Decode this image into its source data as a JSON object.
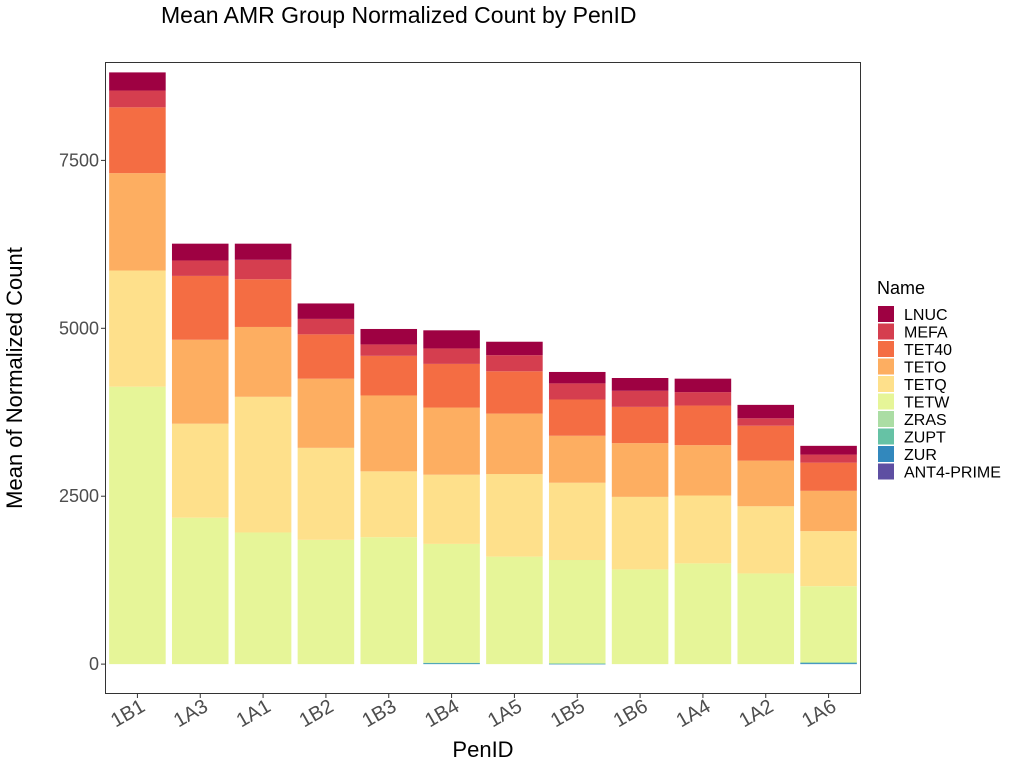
{
  "chart_data": {
    "type": "bar",
    "stacked": true,
    "title": "Mean AMR Group Normalized Count by PenID",
    "xlabel": "PenID",
    "ylabel": "Mean of Normalized Count",
    "ylim": [
      -430,
      8950
    ],
    "yticks": [
      0,
      2500,
      5000,
      7500
    ],
    "grid": false,
    "legend": {
      "title": "Name",
      "position": "right"
    },
    "categories": [
      "1B1",
      "1A3",
      "1A1",
      "1B2",
      "1B3",
      "1B4",
      "1A5",
      "1B5",
      "1B6",
      "1A4",
      "1A2",
      "1A6"
    ],
    "series": [
      {
        "name": "ANT4-PRIME",
        "color": "#5E4FA2",
        "values": [
          0,
          0,
          0,
          0,
          0,
          0,
          0,
          0,
          0,
          0,
          0,
          0
        ]
      },
      {
        "name": "ZUR",
        "color": "#3288BD",
        "values": [
          0,
          0,
          0,
          0,
          0,
          10,
          0,
          5,
          0,
          0,
          0,
          15
        ]
      },
      {
        "name": "ZUPT",
        "color": "#66C2A5",
        "values": [
          0,
          0,
          0,
          0,
          0,
          10,
          0,
          5,
          0,
          0,
          0,
          10
        ]
      },
      {
        "name": "ZRAS",
        "color": "#ABDDA4",
        "values": [
          0,
          0,
          0,
          0,
          0,
          0,
          0,
          0,
          0,
          0,
          0,
          0
        ]
      },
      {
        "name": "TETW",
        "color": "#E6F598",
        "values": [
          4130,
          2180,
          1960,
          1850,
          1890,
          1770,
          1600,
          1540,
          1410,
          1500,
          1350,
          1135
        ]
      },
      {
        "name": "TETQ",
        "color": "#FEE08B",
        "values": [
          1730,
          1400,
          2020,
          1370,
          980,
          1030,
          1230,
          1150,
          1080,
          1010,
          1000,
          820
        ]
      },
      {
        "name": "TETO",
        "color": "#FDAE61",
        "values": [
          1450,
          1250,
          1040,
          1030,
          1130,
          1000,
          900,
          700,
          800,
          750,
          680,
          600
        ]
      },
      {
        "name": "TET40",
        "color": "#F46D43",
        "values": [
          980,
          950,
          710,
          660,
          590,
          650,
          630,
          540,
          540,
          590,
          520,
          420
        ]
      },
      {
        "name": "MEFA",
        "color": "#D53E4F",
        "values": [
          250,
          230,
          290,
          230,
          170,
          230,
          240,
          240,
          240,
          200,
          110,
          120
        ]
      },
      {
        "name": "LNUC",
        "color": "#9E0142",
        "values": [
          270,
          250,
          240,
          230,
          230,
          270,
          200,
          170,
          190,
          200,
          200,
          130
        ]
      }
    ],
    "legend_order": [
      "LNUC",
      "MEFA",
      "TET40",
      "TETO",
      "TETQ",
      "TETW",
      "ZRAS",
      "ZUPT",
      "ZUR",
      "ANT4-PRIME"
    ]
  }
}
